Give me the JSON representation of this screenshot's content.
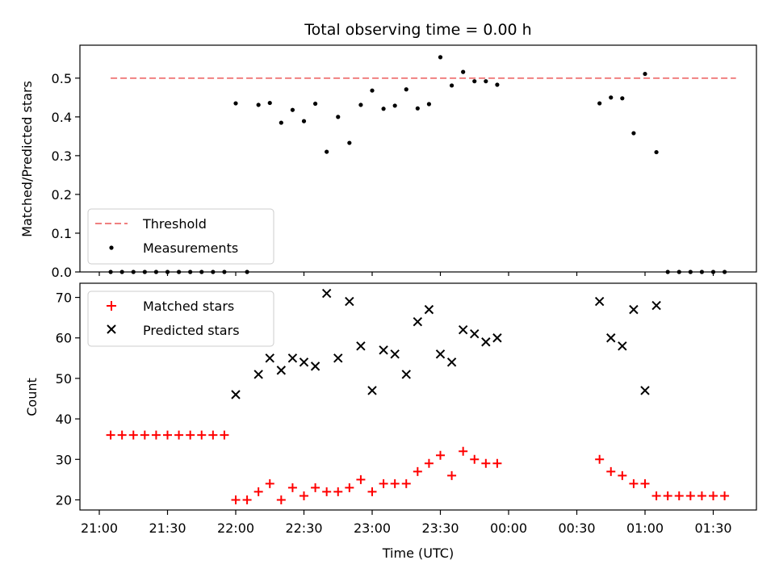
{
  "chart_data": [
    {
      "type": "scatter",
      "title": "Total observing time = 0.00 h",
      "xlabel": "",
      "ylabel": "Matched/Predicted stars",
      "ylim": [
        0,
        0.585
      ],
      "yticks": [
        0.0,
        0.1,
        0.2,
        0.3,
        0.4,
        0.5
      ],
      "ytick_labels": [
        "0.0",
        "0.1",
        "0.2",
        "0.3",
        "0.4",
        "0.5"
      ],
      "xlim": [
        "20:52",
        "01:52"
      ],
      "legend_position": "lower-left",
      "threshold": {
        "name": "Threshold",
        "value": 0.5,
        "x_range": [
          "21:05",
          "01:40"
        ],
        "color": "#f08080",
        "style": "dashed"
      },
      "series": [
        {
          "name": "Measurements",
          "color": "#000000",
          "marker": "dot",
          "points": [
            [
              "21:05",
              0.0
            ],
            [
              "21:10",
              0.0
            ],
            [
              "21:15",
              0.0
            ],
            [
              "21:20",
              0.0
            ],
            [
              "21:25",
              0.0
            ],
            [
              "21:30",
              0.0
            ],
            [
              "21:35",
              0.0
            ],
            [
              "21:40",
              0.0
            ],
            [
              "21:45",
              0.0
            ],
            [
              "21:50",
              0.0
            ],
            [
              "21:55",
              0.0
            ],
            [
              "22:00",
              0.435
            ],
            [
              "22:05",
              0.0
            ],
            [
              "22:10",
              0.431
            ],
            [
              "22:15",
              0.436
            ],
            [
              "22:20",
              0.385
            ],
            [
              "22:25",
              0.418
            ],
            [
              "22:30",
              0.389
            ],
            [
              "22:35",
              0.434
            ],
            [
              "22:40",
              0.31
            ],
            [
              "22:45",
              0.4
            ],
            [
              "22:50",
              0.333
            ],
            [
              "22:55",
              0.431
            ],
            [
              "23:00",
              0.468
            ],
            [
              "23:05",
              0.421
            ],
            [
              "23:10",
              0.429
            ],
            [
              "23:15",
              0.471
            ],
            [
              "23:20",
              0.422
            ],
            [
              "23:25",
              0.433
            ],
            [
              "23:30",
              0.554
            ],
            [
              "23:35",
              0.481
            ],
            [
              "23:40",
              0.516
            ],
            [
              "23:45",
              0.492
            ],
            [
              "23:50",
              0.492
            ],
            [
              "23:55",
              0.483
            ],
            [
              "00:40",
              0.435
            ],
            [
              "00:45",
              0.45
            ],
            [
              "00:50",
              0.448
            ],
            [
              "00:55",
              0.358
            ],
            [
              "01:00",
              0.511
            ],
            [
              "01:05",
              0.309
            ],
            [
              "01:10",
              0.0
            ],
            [
              "01:15",
              0.0
            ],
            [
              "01:20",
              0.0
            ],
            [
              "01:25",
              0.0
            ],
            [
              "01:30",
              0.0
            ],
            [
              "01:35",
              0.0
            ]
          ]
        }
      ]
    },
    {
      "type": "scatter",
      "title": "",
      "xlabel": "Time (UTC)",
      "ylabel": "Count",
      "ylim": [
        17.5,
        73.5
      ],
      "yticks": [
        20,
        30,
        40,
        50,
        60,
        70
      ],
      "ytick_labels": [
        "20",
        "30",
        "40",
        "50",
        "60",
        "70"
      ],
      "xlim": [
        "20:52",
        "01:52"
      ],
      "xticks": [
        "21:00",
        "21:30",
        "22:00",
        "22:30",
        "23:00",
        "23:30",
        "00:00",
        "00:30",
        "01:00",
        "01:30"
      ],
      "legend_position": "upper-left",
      "series": [
        {
          "name": "Matched stars",
          "color": "#ff0000",
          "marker": "plus",
          "points": [
            [
              "21:05",
              36
            ],
            [
              "21:10",
              36
            ],
            [
              "21:15",
              36
            ],
            [
              "21:20",
              36
            ],
            [
              "21:25",
              36
            ],
            [
              "21:30",
              36
            ],
            [
              "21:35",
              36
            ],
            [
              "21:40",
              36
            ],
            [
              "21:45",
              36
            ],
            [
              "21:50",
              36
            ],
            [
              "21:55",
              36
            ],
            [
              "22:00",
              20
            ],
            [
              "22:05",
              20
            ],
            [
              "22:10",
              22
            ],
            [
              "22:15",
              24
            ],
            [
              "22:20",
              20
            ],
            [
              "22:25",
              23
            ],
            [
              "22:30",
              21
            ],
            [
              "22:35",
              23
            ],
            [
              "22:40",
              22
            ],
            [
              "22:45",
              22
            ],
            [
              "22:50",
              23
            ],
            [
              "22:55",
              25
            ],
            [
              "23:00",
              22
            ],
            [
              "23:05",
              24
            ],
            [
              "23:10",
              24
            ],
            [
              "23:15",
              24
            ],
            [
              "23:20",
              27
            ],
            [
              "23:25",
              29
            ],
            [
              "23:30",
              31
            ],
            [
              "23:35",
              26
            ],
            [
              "23:40",
              32
            ],
            [
              "23:45",
              30
            ],
            [
              "23:50",
              29
            ],
            [
              "23:55",
              29
            ],
            [
              "00:40",
              30
            ],
            [
              "00:45",
              27
            ],
            [
              "00:50",
              26
            ],
            [
              "00:55",
              24
            ],
            [
              "01:00",
              24
            ],
            [
              "01:05",
              21
            ],
            [
              "01:10",
              21
            ],
            [
              "01:15",
              21
            ],
            [
              "01:20",
              21
            ],
            [
              "01:25",
              21
            ],
            [
              "01:30",
              21
            ],
            [
              "01:35",
              21
            ]
          ]
        },
        {
          "name": "Predicted stars",
          "color": "#000000",
          "marker": "x",
          "points": [
            [
              "22:00",
              46
            ],
            [
              "22:10",
              51
            ],
            [
              "22:15",
              55
            ],
            [
              "22:20",
              52
            ],
            [
              "22:25",
              55
            ],
            [
              "22:30",
              54
            ],
            [
              "22:35",
              53
            ],
            [
              "22:40",
              71
            ],
            [
              "22:45",
              55
            ],
            [
              "22:50",
              69
            ],
            [
              "22:55",
              58
            ],
            [
              "23:00",
              47
            ],
            [
              "23:05",
              57
            ],
            [
              "23:10",
              56
            ],
            [
              "23:15",
              51
            ],
            [
              "23:20",
              64
            ],
            [
              "23:25",
              67
            ],
            [
              "23:30",
              56
            ],
            [
              "23:35",
              54
            ],
            [
              "23:40",
              62
            ],
            [
              "23:45",
              61
            ],
            [
              "23:50",
              59
            ],
            [
              "23:55",
              60
            ],
            [
              "00:40",
              69
            ],
            [
              "00:45",
              60
            ],
            [
              "00:50",
              58
            ],
            [
              "00:55",
              67
            ],
            [
              "01:00",
              47
            ],
            [
              "01:05",
              68
            ]
          ]
        }
      ]
    }
  ]
}
